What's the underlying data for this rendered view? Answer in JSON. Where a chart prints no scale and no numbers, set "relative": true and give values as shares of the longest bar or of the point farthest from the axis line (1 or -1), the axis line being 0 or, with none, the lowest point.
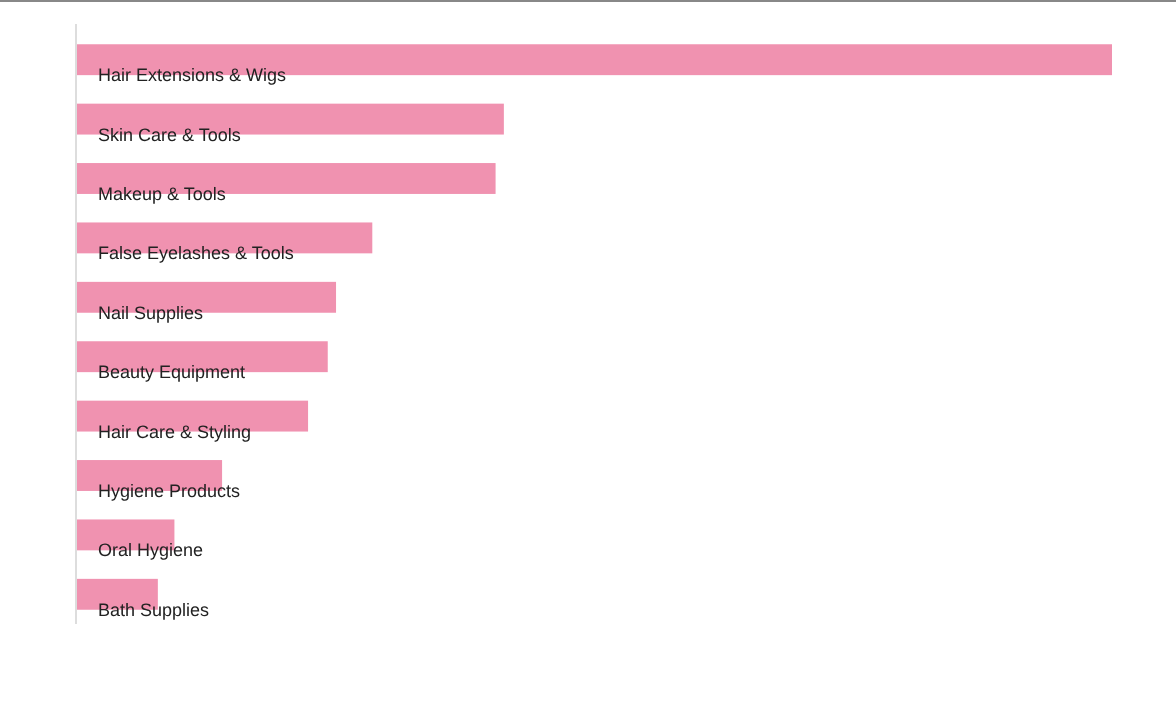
{
  "chart_data": {
    "type": "bar",
    "orientation": "horizontal",
    "relative": true,
    "color": "#f092b0",
    "categories": [
      "Hair Extensions & Wigs",
      "Skin Care & Tools",
      "Makeup & Tools",
      "False Eyelashes & Tools",
      "Nail Supplies",
      "Beauty Equipment",
      "Hair Care & Styling",
      "Hygiene Products",
      "Oral Hygiene",
      "Bath Supplies"
    ],
    "values": [
      1,
      0.413,
      0.405,
      0.286,
      0.251,
      0.243,
      0.224,
      0.141,
      0.095,
      0.079
    ]
  }
}
